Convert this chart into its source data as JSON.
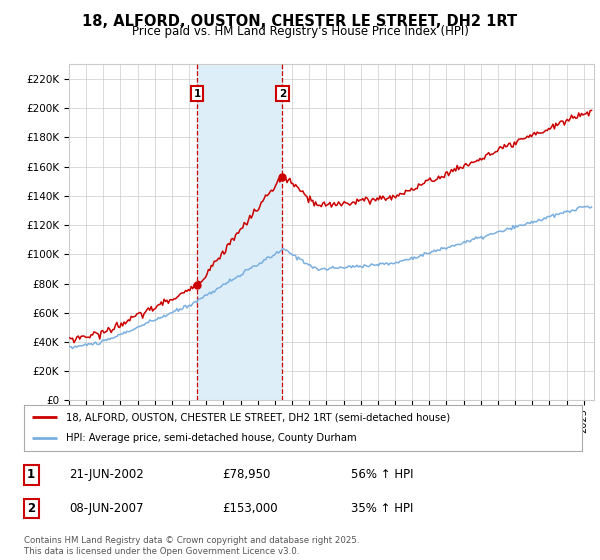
{
  "title": "18, ALFORD, OUSTON, CHESTER LE STREET, DH2 1RT",
  "subtitle": "Price paid vs. HM Land Registry's House Price Index (HPI)",
  "ylim": [
    0,
    230000
  ],
  "yticks": [
    0,
    20000,
    40000,
    60000,
    80000,
    100000,
    120000,
    140000,
    160000,
    180000,
    200000,
    220000
  ],
  "ytick_labels": [
    "£0",
    "£20K",
    "£40K",
    "£60K",
    "£80K",
    "£100K",
    "£120K",
    "£140K",
    "£160K",
    "£180K",
    "£200K",
    "£220K"
  ],
  "purchase1": {
    "date_num": 2002.458,
    "price": 78950,
    "label": "1",
    "hpi_pct": "56% ↑ HPI",
    "date_str": "21-JUN-2002"
  },
  "purchase2": {
    "date_num": 2007.44,
    "price": 153000,
    "label": "2",
    "hpi_pct": "35% ↑ HPI",
    "date_str": "08-JUN-2007"
  },
  "line_color_red": "#cc0000",
  "line_color_blue": "#7aafe0",
  "background_color": "#ffffff",
  "grid_color": "#cccccc",
  "shade_color": "#ddeef8",
  "legend_label_red": "18, ALFORD, OUSTON, CHESTER LE STREET, DH2 1RT (semi-detached house)",
  "legend_label_blue": "HPI: Average price, semi-detached house, County Durham",
  "footer": "Contains HM Land Registry data © Crown copyright and database right 2025.\nThis data is licensed under the Open Government Licence v3.0.",
  "x_start_year": 1995,
  "x_end_year": 2025
}
